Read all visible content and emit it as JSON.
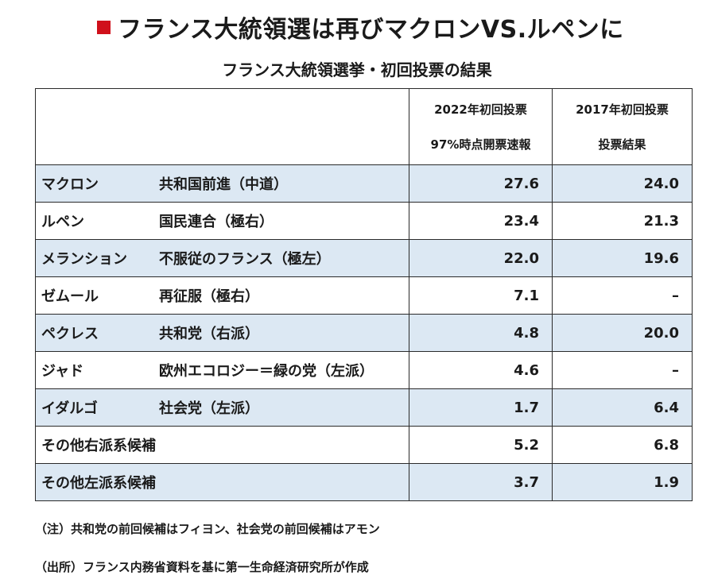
{
  "headline": "フランス大統領選は再びマクロンVS.ルペンに",
  "subtitle": "フランス大統領選挙・初回投票の結果",
  "colors": {
    "accent": "#d0101b",
    "shade": "#dce8f3"
  },
  "table": {
    "col2022": {
      "line1": "2022年初回投票",
      "line2": "97%時点開票速報"
    },
    "col2017": {
      "line1": "2017年初回投票",
      "line2": "投票結果"
    },
    "rows": [
      {
        "candidate": "マクロン",
        "party": "共和国前進（中道）",
        "v2022": "27.6",
        "v2017": "24.0"
      },
      {
        "candidate": "ルペン",
        "party": "国民連合（極右）",
        "v2022": "23.4",
        "v2017": "21.3"
      },
      {
        "candidate": "メランション",
        "party": "不服従のフランス（極左）",
        "v2022": "22.0",
        "v2017": "19.6"
      },
      {
        "candidate": "ゼムール",
        "party": "再征服（極右）",
        "v2022": "7.1",
        "v2017": "–"
      },
      {
        "candidate": "ペクレス",
        "party": "共和党（右派）",
        "v2022": "4.8",
        "v2017": "20.0"
      },
      {
        "candidate": "ジャド",
        "party": "欧州エコロジー＝緑の党（左派）",
        "v2022": "4.6",
        "v2017": "–"
      },
      {
        "candidate": "イダルゴ",
        "party": "社会党（左派）",
        "v2022": "1.7",
        "v2017": "6.4"
      },
      {
        "candidate": "その他右派系候補",
        "party": "",
        "v2022": "5.2",
        "v2017": "6.8"
      },
      {
        "candidate": "その他左派系候補",
        "party": "",
        "v2022": "3.7",
        "v2017": "1.9"
      }
    ]
  },
  "note": "（注）共和党の前回候補はフィヨン、社会党の前回候補はアモン",
  "source": "（出所）フランス内務省資料を基に第一生命経済研究所が作成"
}
